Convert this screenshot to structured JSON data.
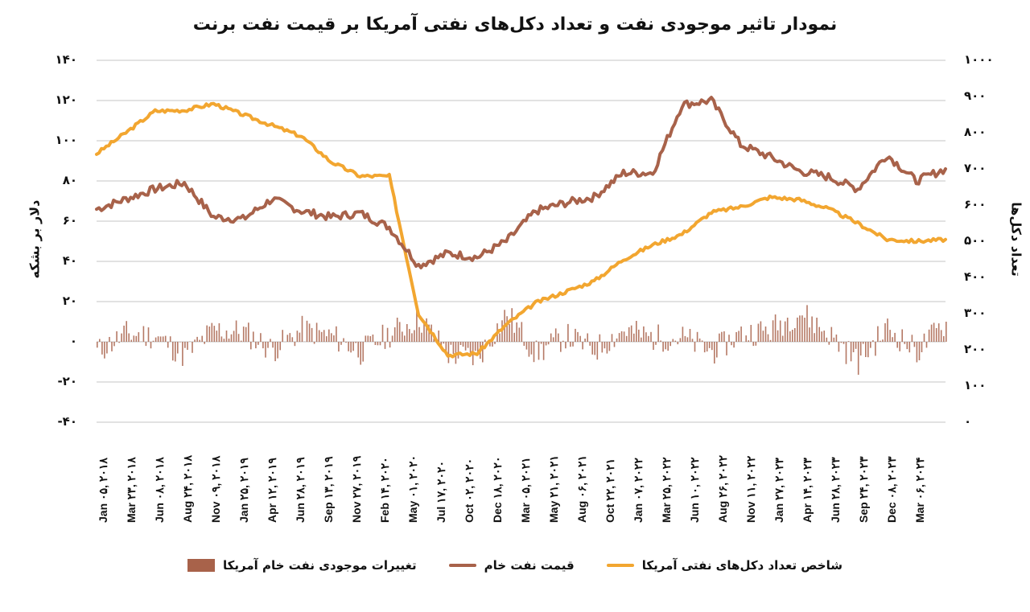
{
  "title": "نمودار تاثیر موجودی نفت و تعداد دکل‌های نفتی آمریکا بر قیمت نفت برنت",
  "axes": {
    "left": {
      "label": "دلار بر بشکه",
      "ticks": [
        "۱۴۰",
        "۱۲۰",
        "۱۰۰",
        "۸۰",
        "۶۰",
        "۴۰",
        "۲۰",
        "۰",
        "-۲۰",
        "-۴۰"
      ],
      "range": [
        -40,
        140
      ]
    },
    "right": {
      "label": "تعداد دکل‌ها",
      "ticks": [
        "۱۰۰۰",
        "۹۰۰",
        "۸۰۰",
        "۷۰۰",
        "۶۰۰",
        "۵۰۰",
        "۴۰۰",
        "۳۰۰",
        "۲۰۰",
        "۱۰۰",
        "۰"
      ],
      "range": [
        0,
        1000
      ]
    },
    "x_ticks": [
      "Jan ۰۵, ۲۰۱۸",
      "Mar ۲۳, ۲۰۱۸",
      "Jun ۰۸, ۲۰۱۸",
      "Aug ۲۴, ۲۰۱۸",
      "Nov ۰۹, ۲۰۱۸",
      "Jan ۲۵, ۲۰۱۹",
      "Apr ۱۲, ۲۰۱۹",
      "Jun ۲۸, ۲۰۱۹",
      "Sep ۱۳, ۲۰۱۹",
      "Nov ۲۷, ۲۰۱۹",
      "Feb ۱۴, ۲۰۲۰",
      "May ۰۱, ۲۰۲۰",
      "Jul ۱۷, ۲۰۲۰",
      "Oct ۰۲, ۲۰۲۰",
      "Dec ۱۸, ۲۰۲۰",
      "Mar ۰۵, ۲۰۲۱",
      "May ۲۱, ۲۰۲۱",
      "Aug ۰۶, ۲۰۲۱",
      "Oct ۲۲, ۲۰۲۱",
      "Jan ۰۷, ۲۰۲۲",
      "Mar ۲۵, ۲۰۲۲",
      "Jun ۱۰, ۲۰۲۲",
      "Aug ۲۶, ۲۰۲۲",
      "Nov ۱۱, ۲۰۲۲",
      "Jan ۲۷, ۲۰۲۳",
      "Apr ۱۴, ۲۰۲۳",
      "Jun ۲۸, ۲۰۲۳",
      "Sep ۲۴, ۲۰۲۳",
      "Dec ۰۸, ۲۰۲۳",
      "Mar ۰۶, ۲۰۲۴"
    ]
  },
  "legend": [
    {
      "label": "شاخص تعداد دکل‌های نفتی آمریکا",
      "color": "#F2A630",
      "type": "line"
    },
    {
      "label": "قیمت نفت خام",
      "color": "#A8624A",
      "type": "line"
    },
    {
      "label": "تغییرات موجودی نفت خام آمریکا",
      "color": "#A8624A",
      "type": "bar"
    }
  ],
  "colors": {
    "rigs": "#F2A630",
    "price": "#A8624A",
    "bars": "#A8624A",
    "grid": "#D9D9D9"
  },
  "chart_data": {
    "type": "line",
    "title": "نمودار تاثیر موجودی نفت و تعداد دکل‌های نفتی آمریکا بر قیمت نفت برنت",
    "xlabel": "",
    "ylabel": "دلار بر بشکه",
    "ylabel_right": "تعداد دکل‌ها",
    "ylim": [
      -40,
      140
    ],
    "ylim_right": [
      0,
      1000
    ],
    "grid": true,
    "legend_position": "bottom",
    "categories": [
      "Jan 05, 2018",
      "Mar 23, 2018",
      "Jun 08, 2018",
      "Aug 24, 2018",
      "Nov 09, 2018",
      "Jan 25, 2019",
      "Apr 12, 2019",
      "Jun 28, 2019",
      "Sep 13, 2019",
      "Nov 27, 2019",
      "Feb 14, 2020",
      "May 01, 2020",
      "Jul 17, 2020",
      "Oct 02, 2020",
      "Dec 18, 2020",
      "Mar 05, 2021",
      "May 21, 2021",
      "Aug 06, 2021",
      "Oct 22, 2021",
      "Jan 07, 2022",
      "Mar 25, 2022",
      "Jun 10, 2022",
      "Aug 26, 2022",
      "Nov 11, 2022",
      "Jan 27, 2023",
      "Apr 14, 2023",
      "Jun 28, 2023",
      "Sep 24, 2023",
      "Dec 08, 2023",
      "Mar 06, 2024"
    ],
    "series": [
      {
        "name": "قیمت نفت خام",
        "axis": "left",
        "type": "line",
        "values": [
          66,
          71,
          76,
          79,
          62,
          61,
          71,
          65,
          62,
          64,
          57,
          38,
          44,
          42,
          50,
          65,
          69,
          72,
          84,
          84,
          118,
          120,
          98,
          92,
          85,
          82,
          76,
          93,
          80,
          86
        ]
      },
      {
        "name": "شاخص تعداد دکل‌های نفتی آمریکا",
        "axis": "right",
        "type": "line",
        "values": [
          742,
          800,
          860,
          862,
          880,
          850,
          820,
          790,
          720,
          680,
          680,
          300,
          185,
          190,
          270,
          330,
          360,
          390,
          450,
          490,
          520,
          580,
          595,
          622,
          615,
          590,
          550,
          505,
          500,
          505
        ]
      },
      {
        "name": "تغییرات موجودی نفت خام آمریکا",
        "axis": "left",
        "type": "bar",
        "values": [
          -5,
          4,
          3,
          -7,
          6,
          5,
          -4,
          6,
          3,
          -5,
          4,
          12,
          -6,
          -8,
          14,
          -6,
          3,
          -4,
          6,
          2,
          2,
          -5,
          4,
          6,
          15,
          4,
          -10,
          7,
          -5,
          10
        ]
      }
    ]
  }
}
